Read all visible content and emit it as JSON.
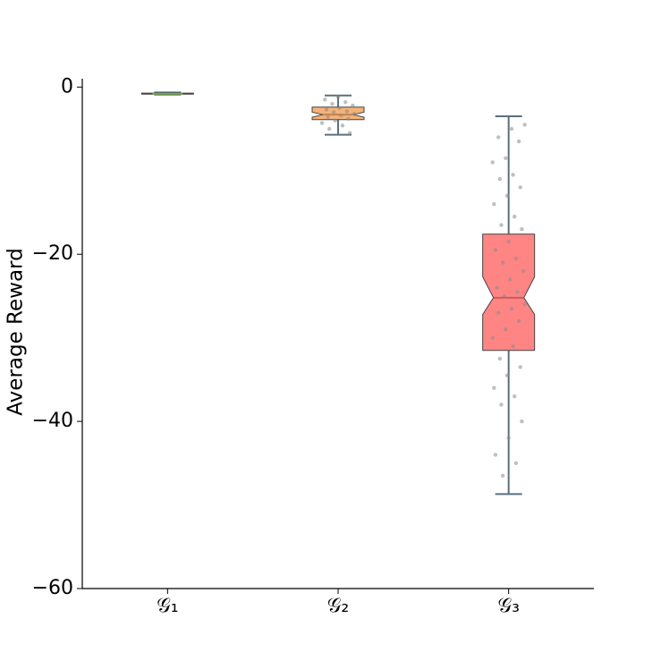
{
  "chart_data": {
    "type": "box",
    "notch": true,
    "ylabel": "Average Reward",
    "categories": [
      "𝒢₁",
      "𝒢₂",
      "𝒢₃"
    ],
    "xlim": [
      0.5,
      3.5
    ],
    "ylim": [
      -60,
      1
    ],
    "yticks": [
      {
        "value": -60,
        "label": "−60"
      },
      {
        "value": -40,
        "label": "−40"
      },
      {
        "value": -20,
        "label": "−20"
      },
      0
    ],
    "boxes": [
      {
        "color": "#8fd14f",
        "whislo": -0.9,
        "q1": -0.85,
        "med": -0.8,
        "q3": -0.72,
        "whishi": -0.65,
        "notch_lo": -0.82,
        "notch_hi": -0.78
      },
      {
        "color": "#f4a460",
        "whislo": -5.7,
        "q1": -3.9,
        "med": -3.3,
        "q3": -2.4,
        "whishi": -1.0,
        "notch_lo": -3.6,
        "notch_hi": -3.0,
        "points": [
          -1.2,
          -1.5,
          -1.8,
          -2.0,
          -2.2,
          -2.5,
          -2.7,
          -2.9,
          -3.0,
          -3.2,
          -3.4,
          -3.6,
          -3.8,
          -4.0,
          -4.3,
          -4.6,
          -5.0,
          -5.5
        ]
      },
      {
        "color": "#ff7070",
        "whislo": -48.7,
        "q1": -31.5,
        "med": -25.2,
        "q3": -17.6,
        "whishi": -3.5,
        "notch_lo": -27.2,
        "notch_hi": -22.7,
        "points": [
          -4.5,
          -5,
          -6,
          -6.5,
          -8.5,
          -9,
          -10.5,
          -11,
          -12,
          -13,
          -14,
          -15.5,
          -16.5,
          -17,
          -18.5,
          -19.5,
          -20.5,
          -21,
          -22,
          -23,
          -24,
          -24.5,
          -25,
          -26,
          -26.5,
          -27,
          -28,
          -29,
          -30,
          -31,
          -32.5,
          -33.5,
          -34.5,
          -36,
          -37,
          -38,
          -40,
          -42,
          -44,
          -45,
          -46.5
        ]
      }
    ]
  }
}
